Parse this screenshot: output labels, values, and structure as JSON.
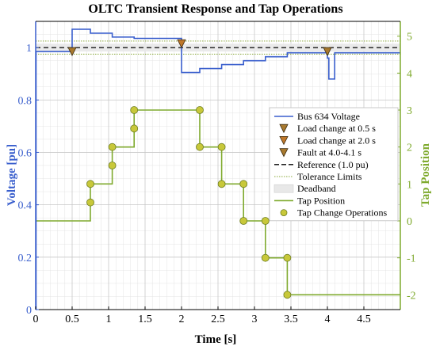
{
  "colors": {
    "voltage": "#3a5fcd",
    "tap": "#7faa2e",
    "left_axis": "#3a5fcd",
    "right_axis": "#7faa2e",
    "reference": "#000000",
    "tolerance": "#8aa83a",
    "deadband": "#e8e8e8",
    "marker_fill": "#a8792e",
    "marker_fill_2": "#c0782a",
    "tap_marker_fill": "#c8c83a",
    "grid_major": "#c8c8c8",
    "grid_minor": "#e4e4e4",
    "axis": "#000000"
  },
  "chart_data": {
    "type": "line",
    "title": "OLTC Transient Response and Tap Operations",
    "xlabel": "Time [s]",
    "ylabel_left": "Voltage [pu]",
    "ylabel_right": "Tap Position",
    "xlim": [
      0,
      5
    ],
    "ylim_left": [
      0,
      1.1
    ],
    "ylim_right": [
      -2.4,
      5.4
    ],
    "x_ticks": [
      "0",
      "0.5",
      "1",
      "1.5",
      "2",
      "2.5",
      "3",
      "3.5",
      "4",
      "4.5"
    ],
    "y_ticks_left": [
      "0",
      "0.2",
      "0.4",
      "0.6",
      "0.8",
      "1"
    ],
    "y_ticks_right": [
      "-2",
      "-1",
      "0",
      "1",
      "2",
      "3",
      "4",
      "5"
    ],
    "grid": true,
    "legend_position": "center-right",
    "legend": [
      "Bus 634 Voltage",
      "Load change at 0.5 s",
      "Load change at 2.0 s",
      "Fault at 4.0-4.1 s",
      "Reference (1.0 pu)",
      "Tolerance Limits",
      "Deadband",
      "Tap Position",
      "Tap Change Operations"
    ],
    "reference": 1.0,
    "tolerance_limits": [
      0.975,
      1.025
    ],
    "deadband": [
      0.985,
      1.015
    ],
    "voltage_series": {
      "name": "Bus 634 Voltage",
      "x": [
        0,
        0.005,
        0.005,
        0.5,
        0.5,
        0.75,
        0.75,
        1.05,
        1.05,
        1.35,
        1.35,
        2.0,
        2.0,
        2.25,
        2.25,
        2.55,
        2.55,
        2.85,
        2.85,
        3.15,
        3.15,
        3.45,
        3.45,
        4.0,
        4.0,
        4.02,
        4.02,
        4.1,
        4.1,
        5.0
      ],
      "y": [
        0,
        0,
        0.985,
        0.985,
        1.07,
        1.07,
        1.055,
        1.055,
        1.04,
        1.04,
        1.035,
        1.035,
        0.905,
        0.905,
        0.92,
        0.92,
        0.935,
        0.935,
        0.95,
        0.95,
        0.965,
        0.965,
        0.98,
        0.98,
        0.96,
        0.96,
        0.88,
        0.88,
        0.98,
        0.98
      ]
    },
    "events": [
      {
        "name": "Load change at 0.5 s",
        "x": 0.5,
        "y": 0.985
      },
      {
        "name": "Load change at 2.0 s",
        "x": 2.0,
        "y": 1.015
      },
      {
        "name": "Fault at 4.0-4.1 s",
        "x": 4.0,
        "y": 0.985
      }
    ],
    "tap_series": {
      "name": "Tap Position",
      "x": [
        0,
        0.75,
        0.75,
        1.05,
        1.05,
        1.35,
        1.35,
        2.25,
        2.25,
        2.55,
        2.55,
        2.85,
        2.85,
        3.15,
        3.15,
        3.45,
        3.45,
        5.0
      ],
      "y": [
        0,
        0,
        1,
        1,
        2,
        2,
        3,
        3,
        2,
        2,
        1,
        1,
        0,
        0,
        -1,
        -1,
        -2,
        -2
      ]
    },
    "tap_operations": {
      "name": "Tap Change Operations",
      "x": [
        0.75,
        0.75,
        1.05,
        1.05,
        1.35,
        1.35,
        2.25,
        2.25,
        2.55,
        2.55,
        2.85,
        2.85,
        3.15,
        3.15,
        3.45,
        3.45
      ],
      "y": [
        0.5,
        1,
        1.5,
        2,
        2.5,
        3,
        3,
        2,
        2,
        1,
        1,
        0,
        0,
        -1,
        -1,
        -2
      ]
    }
  }
}
